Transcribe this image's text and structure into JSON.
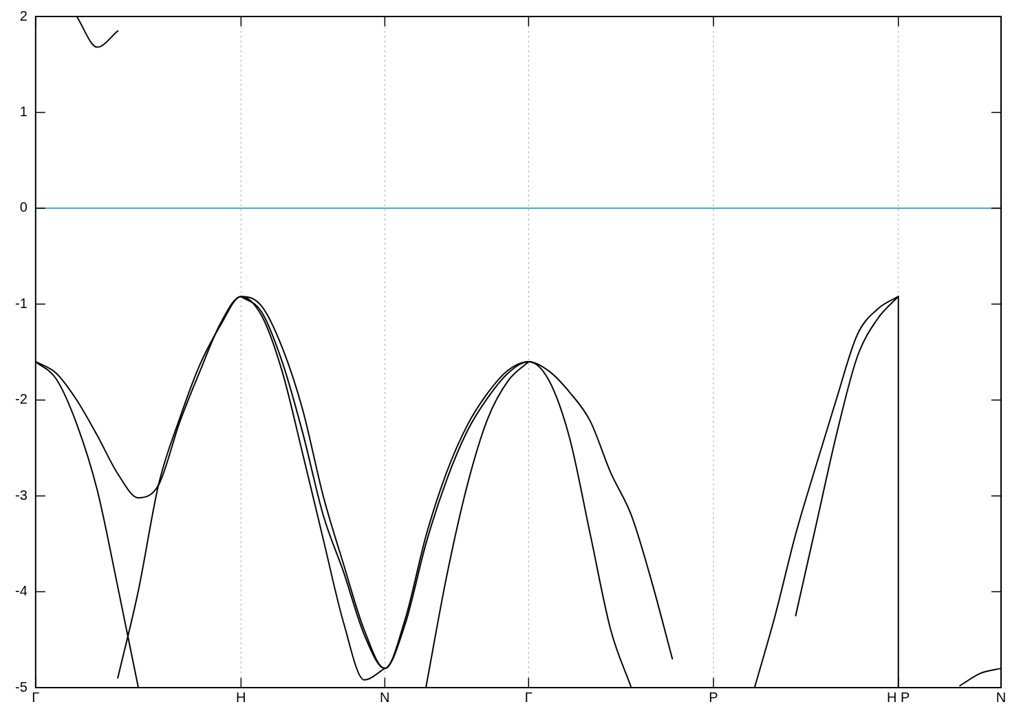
{
  "chart_data": {
    "type": "line",
    "ylim": [
      -5,
      2
    ],
    "categories": [
      "Γ",
      null,
      null,
      null,
      null,
      null,
      null,
      null,
      null,
      null,
      "H",
      null,
      null,
      null,
      null,
      null,
      null,
      "N",
      null,
      null,
      null,
      null,
      null,
      null,
      "Γ",
      null,
      null,
      null,
      null,
      null,
      null,
      null,
      null,
      "P",
      null,
      null,
      null,
      null,
      null,
      null,
      null,
      null,
      "H P",
      null,
      null,
      null,
      null,
      "N"
    ],
    "yticks": [
      -5,
      -4,
      -3,
      -2,
      -1,
      0,
      1,
      2
    ],
    "grid": "x",
    "legend": false,
    "marker": "none",
    "line_style": "solid",
    "ref_lines": [
      {
        "axis": "y",
        "value": 0,
        "color": "#3ba3d8"
      }
    ],
    "series": [
      {
        "color": "#000000",
        "values": [
          -1.6,
          -1.72,
          -2.0,
          -2.37,
          -2.77,
          -3.02,
          -2.88,
          -2.24,
          -1.7,
          -1.2,
          -0.92,
          -1.02,
          -1.45,
          -2.1,
          -3.0,
          -3.72,
          -4.4,
          -4.8,
          -4.33,
          -3.5,
          -2.84,
          -2.33,
          -1.98,
          -1.72,
          -1.6,
          -1.7,
          -1.92,
          -2.22,
          -2.76,
          -3.2,
          -3.9,
          -4.7,
          null,
          null,
          null,
          null,
          null,
          null,
          null,
          null,
          null,
          null,
          null,
          null,
          null,
          null,
          null,
          null
        ]
      },
      {
        "color": "#000000",
        "values": [
          -1.6,
          -1.78,
          -2.25,
          -2.94,
          -3.95,
          -5,
          null,
          null,
          null,
          null,
          -0.92,
          -1.08,
          -1.6,
          -2.34,
          -3.2,
          -3.8,
          -4.45,
          -4.8,
          -4.28,
          -3.42,
          -2.76,
          -2.27,
          -1.93,
          -1.69,
          -1.6,
          -1.8,
          -2.4,
          -3.4,
          -4.4,
          -5,
          null,
          null,
          null,
          null,
          null,
          null,
          null,
          null,
          null,
          null,
          null,
          null,
          null,
          null,
          null,
          null,
          null,
          null
        ]
      },
      {
        "color": "#000000",
        "values": [
          null,
          null,
          null,
          null,
          -4.9,
          -3.99,
          -2.87,
          -2.2,
          -1.63,
          -1.22,
          -0.92,
          -1.12,
          -1.7,
          -2.56,
          -3.45,
          -4.33,
          -4.92,
          -4.8,
          null,
          -5,
          -3.85,
          -2.9,
          -2.2,
          -1.8,
          -1.6,
          null,
          null,
          null,
          null,
          null,
          null,
          null,
          null,
          null,
          null,
          -5,
          -4.25,
          -3.4,
          -2.68,
          -1.98,
          -1.32,
          -1.05,
          -0.92,
          null,
          null,
          -4.98,
          -4.85,
          -4.8
        ]
      },
      {
        "color": "#000000",
        "values": [
          null,
          null,
          2,
          1.68,
          1.85,
          null,
          null,
          null,
          null,
          null,
          null,
          null,
          null,
          null,
          null,
          null,
          null,
          null,
          null,
          null,
          null,
          null,
          null,
          null,
          null,
          null,
          null,
          null,
          null,
          null,
          null,
          null,
          null,
          null,
          null,
          null,
          null,
          -4.25,
          -3.3,
          -2.35,
          -1.55,
          -1.15,
          -0.92,
          null,
          null,
          null,
          null,
          null
        ]
      },
      {
        "color": "#000000",
        "x": [
          "H P",
          "H P"
        ],
        "values": [
          -0.92,
          -5
        ]
      }
    ]
  }
}
